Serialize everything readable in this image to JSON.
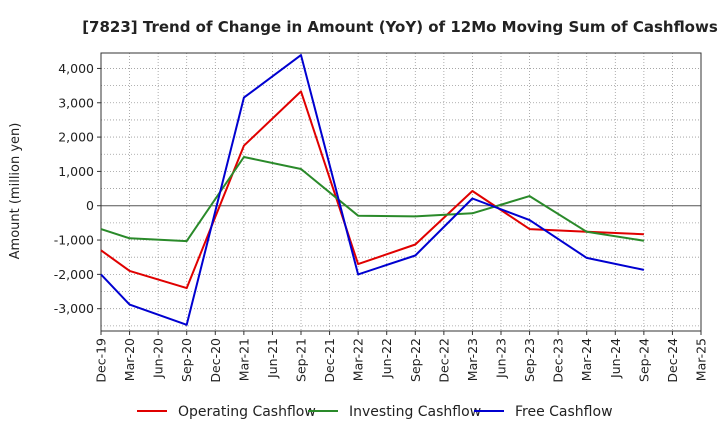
{
  "chart_data": {
    "type": "line",
    "title": "[7823]  Trend of Change in Amount (YoY) of 12Mo Moving Sum of Cashflows",
    "xlabel": "",
    "ylabel": "Amount (million yen)",
    "ylim": [
      -3650,
      4450
    ],
    "yticks": [
      -3000,
      -2000,
      -1000,
      0,
      1000,
      2000,
      3000,
      4000
    ],
    "ytick_labels": [
      "-3,000",
      "-2,000",
      "-1,000",
      "0",
      "1,000",
      "2,000",
      "3,000",
      "4,000"
    ],
    "categories": [
      "Dec-19",
      "Mar-20",
      "Jun-20",
      "Sep-20",
      "Dec-20",
      "Mar-21",
      "Jun-21",
      "Sep-21",
      "Dec-21",
      "Mar-22",
      "Jun-22",
      "Sep-22",
      "Dec-22",
      "Mar-23",
      "Jun-23",
      "Sep-23",
      "Dec-23",
      "Mar-24",
      "Jun-24",
      "Sep-24",
      "Dec-24",
      "Mar-25"
    ],
    "grid": true,
    "legend_position": "bottom",
    "series": [
      {
        "name": "Operating Cashflow",
        "color": "#e00000",
        "values": [
          -1300,
          -1900,
          null,
          -2400,
          null,
          1750,
          null,
          3330,
          null,
          -1700,
          null,
          -1130,
          null,
          430,
          null,
          -680,
          null,
          -760,
          null,
          -830,
          null,
          null
        ]
      },
      {
        "name": "Investing Cashflow",
        "color": "#2a8a2a",
        "values": [
          -680,
          -950,
          null,
          -1030,
          null,
          1420,
          null,
          1070,
          null,
          -290,
          null,
          -310,
          null,
          -220,
          null,
          280,
          null,
          -760,
          null,
          -1020,
          null,
          null
        ]
      },
      {
        "name": "Free Cashflow",
        "color": "#0000d0",
        "values": [
          -2000,
          -2880,
          null,
          -3470,
          null,
          3150,
          null,
          4390,
          null,
          -2000,
          null,
          -1450,
          null,
          210,
          null,
          -420,
          null,
          -1520,
          null,
          -1870,
          null,
          null
        ]
      }
    ]
  }
}
